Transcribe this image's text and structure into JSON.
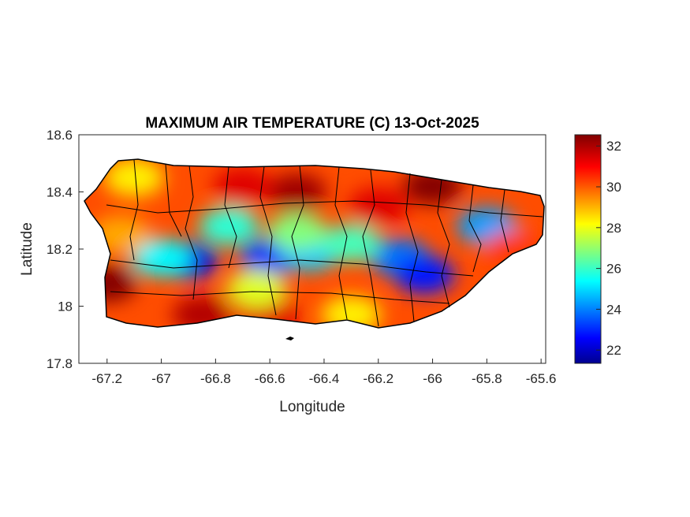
{
  "chart_data": {
    "type": "heatmap",
    "title": "MAXIMUM AIR TEMPERATURE (C) 13-Oct-2025",
    "xlabel": "Longitude",
    "ylabel": "Latitude",
    "xlim": [
      -67.304,
      -65.583
    ],
    "ylim": [
      17.8,
      18.6
    ],
    "xticks": [
      -67.2,
      -67,
      -66.8,
      -66.6,
      -66.4,
      -66.2,
      -66,
      -65.8,
      -65.6
    ],
    "xtick_labels": [
      "-67.2",
      "-67",
      "-66.8",
      "-66.6",
      "-66.4",
      "-66.2",
      "-66",
      "-65.8",
      "-65.6"
    ],
    "yticks": [
      17.8,
      18,
      18.2,
      18.4,
      18.6
    ],
    "ytick_labels": [
      "17.8",
      "18",
      "18.2",
      "18.4",
      "18.6"
    ],
    "colorbar": {
      "colormap": "jet",
      "clim": [
        21.35,
        32.55
      ],
      "ticks": [
        22,
        24,
        26,
        28,
        30,
        32
      ],
      "tick_labels": [
        "22",
        "24",
        "26",
        "28",
        "30",
        "32"
      ]
    },
    "base_value": 30.3,
    "temperature_spots": [
      {
        "lon": -66.9,
        "lat": 18.16,
        "value": 22.5
      },
      {
        "lon": -66.6,
        "lat": 18.17,
        "value": 23.3
      },
      {
        "lon": -66.45,
        "lat": 18.19,
        "value": 25
      },
      {
        "lon": -66.12,
        "lat": 18.17,
        "value": 24
      },
      {
        "lon": -66.03,
        "lat": 18.11,
        "value": 23
      },
      {
        "lon": -65.8,
        "lat": 18.28,
        "value": 24.5
      },
      {
        "lon": -66.75,
        "lat": 18.28,
        "value": 26
      },
      {
        "lon": -66.3,
        "lat": 18.22,
        "value": 26.3
      },
      {
        "lon": -67.0,
        "lat": 18.17,
        "value": 25.5
      },
      {
        "lon": -66.5,
        "lat": 18.26,
        "value": 27
      },
      {
        "lon": -67.2,
        "lat": 18.08,
        "value": 32.5
      },
      {
        "lon": -66.5,
        "lat": 18.4,
        "value": 32.2
      },
      {
        "lon": -66.0,
        "lat": 18.42,
        "value": 32.5
      },
      {
        "lon": -66.2,
        "lat": 18.35,
        "value": 31.5
      },
      {
        "lon": -66.85,
        "lat": 17.97,
        "value": 32
      },
      {
        "lon": -66.6,
        "lat": 17.97,
        "value": 31.5
      },
      {
        "lon": -66.7,
        "lat": 18.42,
        "value": 31.5
      },
      {
        "lon": -67.1,
        "lat": 18.45,
        "value": 28.5
      },
      {
        "lon": -66.3,
        "lat": 17.97,
        "value": 28.5
      },
      {
        "lon": -66.65,
        "lat": 18.06,
        "value": 28
      },
      {
        "lon": -67.15,
        "lat": 18.25,
        "value": 29.3
      },
      {
        "lon": -65.7,
        "lat": 18.2,
        "value": 30.5
      }
    ]
  },
  "colors": {
    "border": "#000000",
    "axis": "#262626"
  }
}
